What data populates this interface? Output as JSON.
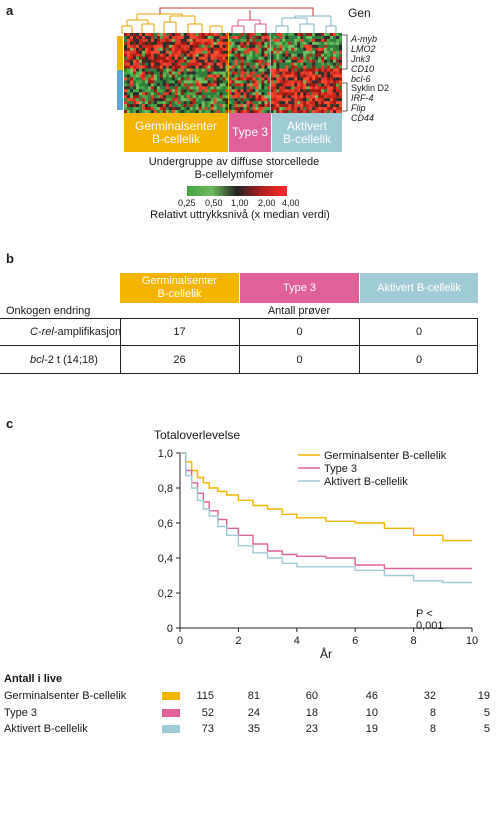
{
  "panel_a": {
    "letter": "a",
    "gene_heading": "Gen",
    "genes_upper": [
      "A-myb",
      "LMO2",
      "Jnk3",
      "CD10",
      "bcl-6"
    ],
    "genes_lower": [
      "Syklin D2",
      "IRF-4",
      "Flip",
      "CD44"
    ],
    "groups": [
      {
        "label": "Germinalsenter\nB-cellelik",
        "color": "#f5b400"
      },
      {
        "label": "Type 3",
        "color": "#e0609a"
      },
      {
        "label": "Aktivert\nB-cellelik",
        "color": "#9fcbd6"
      }
    ],
    "caption_line1": "Undergruppe av diffuse storcellede",
    "caption_line2": "B-cellelymfomer",
    "scale_ticks": [
      "0,25",
      "0,50",
      "1,00",
      "2,00",
      "4,00"
    ],
    "scale_caption": "Relativt uttrykksnivå (x median verdi)"
  },
  "panel_b": {
    "letter": "b",
    "headers": [
      {
        "label": "Germinalsenter\nB-cellelik",
        "color": "#f5b400"
      },
      {
        "label": "Type 3",
        "color": "#e0609a"
      },
      {
        "label": "Aktivert B-cellelik",
        "color": "#9fcbd6"
      }
    ],
    "col_heading": "Antall prøver",
    "row_heading": "Onkogen endring",
    "rows": [
      {
        "label_italic": "C-rel",
        "label_rest": "-amplifikasjon",
        "values": [
          "17",
          "0",
          "0"
        ]
      },
      {
        "label_italic": "bcl",
        "label_rest": "-2 t (14;18)",
        "values": [
          "26",
          "0",
          "0"
        ]
      }
    ]
  },
  "panel_c": {
    "letter": "c",
    "p_value": "P < 0,001",
    "risk_title": "Antall i live",
    "risk_rows": [
      {
        "label": "Germinalsenter  B-cellelik",
        "color": "#f5b400",
        "values": [
          "115",
          "81",
          "60",
          "46",
          "32",
          "19"
        ]
      },
      {
        "label": "Type 3",
        "color": "#e0609a",
        "values": [
          "52",
          "24",
          "18",
          "10",
          "8",
          "5"
        ]
      },
      {
        "label": "Aktivert B-cellelik",
        "color": "#9fcbd6",
        "values": [
          "73",
          "35",
          "23",
          "19",
          "8",
          "5"
        ]
      }
    ]
  },
  "chart_data": {
    "type": "line",
    "title": "",
    "ylabel": "Totaloverlevelse",
    "xlabel": "År",
    "xlim": [
      0,
      10
    ],
    "ylim": [
      0,
      1.0
    ],
    "xticks": [
      "0",
      "2",
      "4",
      "6",
      "8",
      "10"
    ],
    "yticks": [
      "0",
      "0,2",
      "0,4",
      "0,6",
      "0,8",
      "1,0"
    ],
    "legend_position": "top-right",
    "series": [
      {
        "name": "Germinalsenter  B-cellelik",
        "color": "#f5b400",
        "x": [
          0,
          0.2,
          0.4,
          0.6,
          0.8,
          1.0,
          1.3,
          1.6,
          2.0,
          2.5,
          3.0,
          3.5,
          4.0,
          5.0,
          6.0,
          7.0,
          8.0,
          9.0,
          10.0
        ],
        "y": [
          1.0,
          0.95,
          0.9,
          0.86,
          0.83,
          0.8,
          0.78,
          0.76,
          0.73,
          0.7,
          0.68,
          0.65,
          0.63,
          0.61,
          0.6,
          0.57,
          0.53,
          0.5,
          0.5
        ]
      },
      {
        "name": "Type 3",
        "color": "#e0609a",
        "x": [
          0,
          0.2,
          0.4,
          0.6,
          0.8,
          1.0,
          1.3,
          1.6,
          2.0,
          2.5,
          3.0,
          3.5,
          4.0,
          5.0,
          6.0,
          7.0,
          8.0,
          9.0,
          10.0
        ],
        "y": [
          1.0,
          0.9,
          0.83,
          0.77,
          0.72,
          0.67,
          0.62,
          0.57,
          0.53,
          0.48,
          0.44,
          0.42,
          0.41,
          0.4,
          0.36,
          0.34,
          0.34,
          0.34,
          0.34
        ]
      },
      {
        "name": "Aktivert B-cellelik",
        "color": "#9fcbd6",
        "x": [
          0,
          0.2,
          0.4,
          0.6,
          0.8,
          1.0,
          1.3,
          1.6,
          2.0,
          2.5,
          3.0,
          3.5,
          4.0,
          5.0,
          6.0,
          7.0,
          8.0,
          9.0,
          10.0
        ],
        "y": [
          1.0,
          0.87,
          0.8,
          0.73,
          0.68,
          0.64,
          0.58,
          0.53,
          0.47,
          0.43,
          0.4,
          0.37,
          0.35,
          0.35,
          0.33,
          0.3,
          0.27,
          0.26,
          0.26
        ]
      }
    ]
  }
}
